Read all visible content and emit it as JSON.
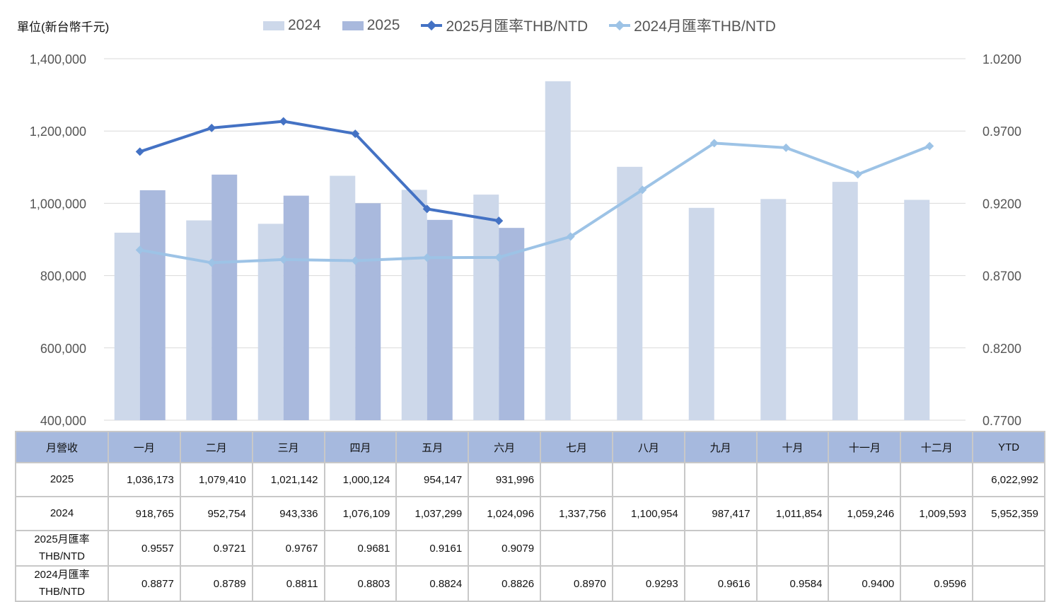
{
  "chart_data": {
    "type": "bar",
    "unit_label": "單位(新台幣千元)",
    "categories": [
      "一月",
      "二月",
      "三月",
      "四月",
      "五月",
      "六月",
      "七月",
      "八月",
      "九月",
      "十月",
      "十一月",
      "十二月"
    ],
    "series": [
      {
        "name": "2024",
        "kind": "bar",
        "axis": "left",
        "color": "#cdd8ea",
        "values": [
          918765,
          952754,
          943336,
          1076109,
          1037299,
          1024096,
          1337756,
          1100954,
          987417,
          1011854,
          1059246,
          1009593
        ]
      },
      {
        "name": "2025",
        "kind": "bar",
        "axis": "left",
        "color": "#a9b9dd",
        "values": [
          1036173,
          1079410,
          1021142,
          1000124,
          954147,
          931996,
          null,
          null,
          null,
          null,
          null,
          null
        ]
      },
      {
        "name": "2025月匯率THB/NTD",
        "kind": "line",
        "axis": "right",
        "color": "#4472c4",
        "values": [
          0.9557,
          0.9721,
          0.9767,
          0.9681,
          0.9161,
          0.9079,
          null,
          null,
          null,
          null,
          null,
          null
        ]
      },
      {
        "name": "2024月匯率THB/NTD",
        "kind": "line",
        "axis": "right",
        "color": "#9dc3e6",
        "values": [
          0.8877,
          0.8789,
          0.8811,
          0.8803,
          0.8824,
          0.8826,
          0.897,
          0.9293,
          0.9616,
          0.9584,
          0.94,
          0.9596
        ]
      }
    ],
    "y_left": {
      "min": 400000,
      "max": 1400000,
      "ticks": [
        "400,000",
        "600,000",
        "800,000",
        "1,000,000",
        "1,200,000",
        "1,400,000"
      ]
    },
    "y_right": {
      "min": 0.77,
      "max": 1.02,
      "ticks": [
        "0.7700",
        "0.8200",
        "0.8700",
        "0.9200",
        "0.9700",
        "1.0200"
      ]
    },
    "grid": true,
    "legend_position": "top"
  },
  "table": {
    "header": [
      "月營收",
      "一月",
      "二月",
      "三月",
      "四月",
      "五月",
      "六月",
      "七月",
      "八月",
      "九月",
      "十月",
      "十一月",
      "十二月",
      "YTD"
    ],
    "rows": [
      {
        "label": [
          "2025"
        ],
        "kind": "rev",
        "cells": [
          "1,036,173",
          "1,079,410",
          "1,021,142",
          "1,000,124",
          "954,147",
          "931,996",
          "",
          "",
          "",
          "",
          "",
          "",
          "6,022,992"
        ]
      },
      {
        "label": [
          "2024"
        ],
        "kind": "rev",
        "cells": [
          "918,765",
          "952,754",
          "943,336",
          "1,076,109",
          "1,037,299",
          "1,024,096",
          "1,337,756",
          "1,100,954",
          "987,417",
          "1,011,854",
          "1,059,246",
          "1,009,593",
          "5,952,359"
        ]
      },
      {
        "label": [
          "2025月匯率",
          "THB/NTD"
        ],
        "kind": "rate",
        "cells": [
          "0.9557",
          "0.9721",
          "0.9767",
          "0.9681",
          "0.9161",
          "0.9079",
          "",
          "",
          "",
          "",
          "",
          "",
          ""
        ]
      },
      {
        "label": [
          "2024月匯率",
          "THB/NTD"
        ],
        "kind": "rate",
        "cells": [
          "0.8877",
          "0.8789",
          "0.8811",
          "0.8803",
          "0.8824",
          "0.8826",
          "0.8970",
          "0.9293",
          "0.9616",
          "0.9584",
          "0.9400",
          "0.9596",
          ""
        ]
      }
    ]
  }
}
